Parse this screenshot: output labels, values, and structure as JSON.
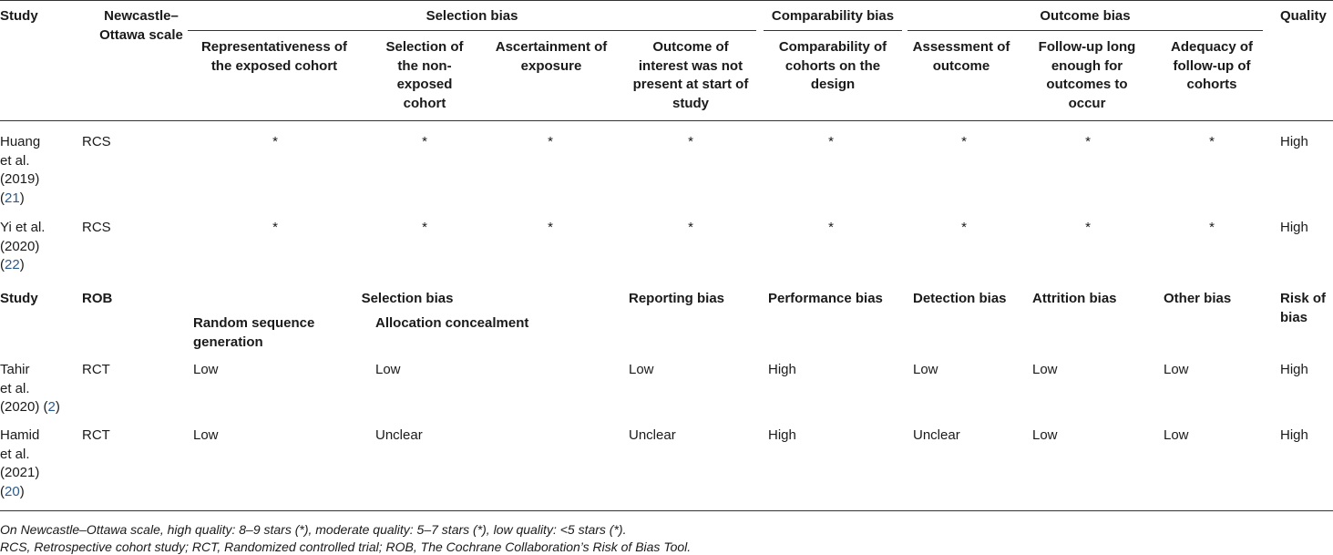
{
  "nos": {
    "headers": {
      "study": "Study",
      "scale": "Newcastle–\nOttawa scale",
      "selection_bias": "Selection bias",
      "comparability_bias": "Comparability bias",
      "outcome_bias": "Outcome bias",
      "quality": "Quality",
      "sub": [
        "Representativeness of\nthe exposed cohort",
        "Selection of\nthe non-\nexposed\ncohort",
        "Ascertainment of\nexposure",
        "Outcome of\ninterest was not\npresent at start of\nstudy",
        "Comparability of\ncohorts on the\ndesign",
        "Assessment of\noutcome",
        "Follow-up long\nenough for\noutcomes to\noccur",
        "Adequacy of\nfollow-up of\ncohorts"
      ]
    },
    "rows": [
      {
        "study": "Huang\net al.\n(2019)\n(",
        "ref": "21",
        "ref_close": ")",
        "design": "RCS",
        "stars": [
          "*",
          "*",
          "*",
          "*",
          "*",
          "*",
          "*",
          "*"
        ],
        "quality": "High"
      },
      {
        "study": "Yi et al.\n(2020)\n(",
        "ref": "22",
        "ref_close": ")",
        "design": "RCS",
        "stars": [
          "*",
          "*",
          "*",
          "*",
          "*",
          "*",
          "*",
          "*"
        ],
        "quality": "High"
      }
    ]
  },
  "rob": {
    "headers": {
      "study": "Study",
      "tool": "ROB",
      "selection_bias": "Selection bias",
      "random_sequence": "Random sequence\ngeneration",
      "allocation": "Allocation concealment",
      "reporting": "Reporting bias",
      "performance": "Performance bias",
      "detection": "Detection bias",
      "attrition": "Attrition bias",
      "other": "Other bias",
      "risk": "Risk of\nbias"
    },
    "rows": [
      {
        "study": "Tahir\net al.\n(2020) (",
        "ref": "2",
        "ref_close": ")",
        "design": "RCT",
        "cells": [
          "Low",
          "Low",
          "Low",
          "High",
          "Low",
          "Low",
          "Low",
          "High"
        ]
      },
      {
        "study": "Hamid\net al.\n(2021)\n(",
        "ref": "20",
        "ref_close": ")",
        "design": "RCT",
        "cells": [
          "Low",
          "Unclear",
          "Unclear",
          "High",
          "Unclear",
          "Low",
          "Low",
          "High"
        ]
      }
    ]
  },
  "footnotes": [
    "On Newcastle–Ottawa scale, high quality: 8–9 stars (*), moderate quality: 5–7 stars (*), low quality: <5 stars (*).",
    "RCS, Retrospective cohort study; RCT, Randomized controlled trial; ROB, The Cochrane Collaboration’s Risk of Bias Tool."
  ]
}
